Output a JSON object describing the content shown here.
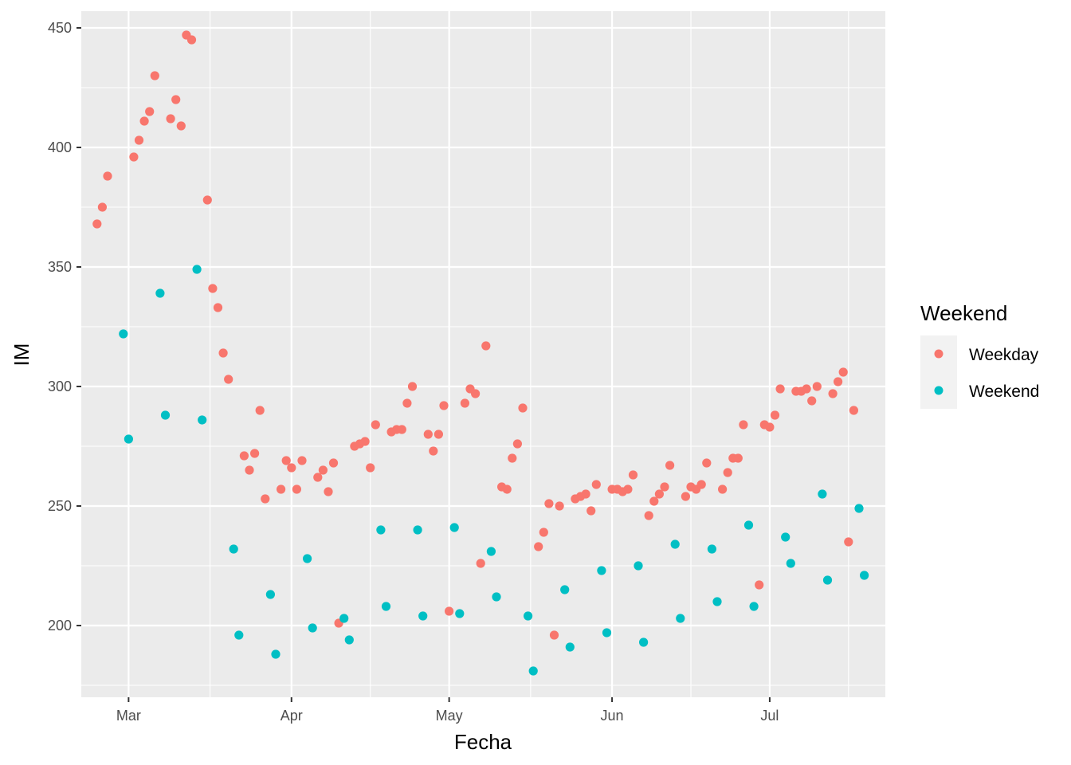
{
  "chart_data": {
    "type": "scatter",
    "xlabel": "Fecha",
    "ylabel": "IM",
    "x_axis": "date",
    "xlim": [
      "2020-02-21",
      "2020-07-23"
    ],
    "ylim": [
      170,
      457
    ],
    "x_ticks": [
      {
        "date": "2020-03-01",
        "label": "Mar"
      },
      {
        "date": "2020-04-01",
        "label": "Apr"
      },
      {
        "date": "2020-05-01",
        "label": "May"
      },
      {
        "date": "2020-06-01",
        "label": "Jun"
      },
      {
        "date": "2020-07-01",
        "label": "Jul"
      }
    ],
    "y_ticks": [
      200,
      250,
      300,
      350,
      400,
      450
    ],
    "grid": true,
    "legend": {
      "title": "Weekend",
      "position": "right"
    },
    "series": [
      {
        "name": "Weekday",
        "color": "#F8766D",
        "points": [
          [
            "2020-02-24",
            368
          ],
          [
            "2020-02-25",
            375
          ],
          [
            "2020-02-26",
            388
          ],
          [
            "2020-03-02",
            396
          ],
          [
            "2020-03-03",
            403
          ],
          [
            "2020-03-04",
            411
          ],
          [
            "2020-03-05",
            415
          ],
          [
            "2020-03-06",
            430
          ],
          [
            "2020-03-09",
            412
          ],
          [
            "2020-03-10",
            420
          ],
          [
            "2020-03-11",
            409
          ],
          [
            "2020-03-12",
            447
          ],
          [
            "2020-03-13",
            445
          ],
          [
            "2020-03-16",
            378
          ],
          [
            "2020-03-17",
            341
          ],
          [
            "2020-03-18",
            333
          ],
          [
            "2020-03-19",
            314
          ],
          [
            "2020-03-20",
            303
          ],
          [
            "2020-03-23",
            271
          ],
          [
            "2020-03-24",
            265
          ],
          [
            "2020-03-25",
            272
          ],
          [
            "2020-03-26",
            290
          ],
          [
            "2020-03-27",
            253
          ],
          [
            "2020-03-30",
            257
          ],
          [
            "2020-03-31",
            269
          ],
          [
            "2020-04-01",
            266
          ],
          [
            "2020-04-02",
            257
          ],
          [
            "2020-04-03",
            269
          ],
          [
            "2020-04-06",
            262
          ],
          [
            "2020-04-07",
            265
          ],
          [
            "2020-04-08",
            256
          ],
          [
            "2020-04-09",
            268
          ],
          [
            "2020-04-10",
            201
          ],
          [
            "2020-04-13",
            275
          ],
          [
            "2020-04-14",
            276
          ],
          [
            "2020-04-15",
            277
          ],
          [
            "2020-04-16",
            266
          ],
          [
            "2020-04-17",
            284
          ],
          [
            "2020-04-20",
            281
          ],
          [
            "2020-04-21",
            282
          ],
          [
            "2020-04-22",
            282
          ],
          [
            "2020-04-23",
            293
          ],
          [
            "2020-04-24",
            300
          ],
          [
            "2020-04-27",
            280
          ],
          [
            "2020-04-28",
            273
          ],
          [
            "2020-04-29",
            280
          ],
          [
            "2020-04-30",
            292
          ],
          [
            "2020-05-01",
            206
          ],
          [
            "2020-05-04",
            293
          ],
          [
            "2020-05-05",
            299
          ],
          [
            "2020-05-06",
            297
          ],
          [
            "2020-05-07",
            226
          ],
          [
            "2020-05-08",
            317
          ],
          [
            "2020-05-11",
            258
          ],
          [
            "2020-05-12",
            257
          ],
          [
            "2020-05-13",
            270
          ],
          [
            "2020-05-14",
            276
          ],
          [
            "2020-05-15",
            291
          ],
          [
            "2020-05-18",
            233
          ],
          [
            "2020-05-19",
            239
          ],
          [
            "2020-05-20",
            251
          ],
          [
            "2020-05-21",
            196
          ],
          [
            "2020-05-22",
            250
          ],
          [
            "2020-05-25",
            253
          ],
          [
            "2020-05-26",
            254
          ],
          [
            "2020-05-27",
            255
          ],
          [
            "2020-05-28",
            248
          ],
          [
            "2020-05-29",
            259
          ],
          [
            "2020-06-01",
            257
          ],
          [
            "2020-06-02",
            257
          ],
          [
            "2020-06-03",
            256
          ],
          [
            "2020-06-04",
            257
          ],
          [
            "2020-06-05",
            263
          ],
          [
            "2020-06-08",
            246
          ],
          [
            "2020-06-09",
            252
          ],
          [
            "2020-06-10",
            255
          ],
          [
            "2020-06-11",
            258
          ],
          [
            "2020-06-12",
            267
          ],
          [
            "2020-06-15",
            254
          ],
          [
            "2020-06-16",
            258
          ],
          [
            "2020-06-17",
            257
          ],
          [
            "2020-06-18",
            259
          ],
          [
            "2020-06-19",
            268
          ],
          [
            "2020-06-22",
            257
          ],
          [
            "2020-06-23",
            264
          ],
          [
            "2020-06-24",
            270
          ],
          [
            "2020-06-25",
            270
          ],
          [
            "2020-06-26",
            284
          ],
          [
            "2020-06-29",
            217
          ],
          [
            "2020-06-30",
            284
          ],
          [
            "2020-07-01",
            283
          ],
          [
            "2020-07-02",
            288
          ],
          [
            "2020-07-03",
            299
          ],
          [
            "2020-07-06",
            298
          ],
          [
            "2020-07-07",
            298
          ],
          [
            "2020-07-08",
            299
          ],
          [
            "2020-07-09",
            294
          ],
          [
            "2020-07-10",
            300
          ],
          [
            "2020-07-13",
            297
          ],
          [
            "2020-07-14",
            302
          ],
          [
            "2020-07-15",
            306
          ],
          [
            "2020-07-16",
            235
          ],
          [
            "2020-07-17",
            290
          ]
        ]
      },
      {
        "name": "Weekend",
        "color": "#00BFC4",
        "points": [
          [
            "2020-02-29",
            322
          ],
          [
            "2020-03-01",
            278
          ],
          [
            "2020-03-07",
            339
          ],
          [
            "2020-03-08",
            288
          ],
          [
            "2020-03-14",
            349
          ],
          [
            "2020-03-15",
            286
          ],
          [
            "2020-03-21",
            232
          ],
          [
            "2020-03-22",
            196
          ],
          [
            "2020-03-28",
            213
          ],
          [
            "2020-03-29",
            188
          ],
          [
            "2020-04-04",
            228
          ],
          [
            "2020-04-05",
            199
          ],
          [
            "2020-04-11",
            203
          ],
          [
            "2020-04-12",
            194
          ],
          [
            "2020-04-18",
            240
          ],
          [
            "2020-04-19",
            208
          ],
          [
            "2020-04-25",
            240
          ],
          [
            "2020-04-26",
            204
          ],
          [
            "2020-05-02",
            241
          ],
          [
            "2020-05-03",
            205
          ],
          [
            "2020-05-09",
            231
          ],
          [
            "2020-05-10",
            212
          ],
          [
            "2020-05-16",
            204
          ],
          [
            "2020-05-17",
            181
          ],
          [
            "2020-05-23",
            215
          ],
          [
            "2020-05-24",
            191
          ],
          [
            "2020-05-30",
            223
          ],
          [
            "2020-05-31",
            197
          ],
          [
            "2020-06-06",
            225
          ],
          [
            "2020-06-07",
            193
          ],
          [
            "2020-06-13",
            234
          ],
          [
            "2020-06-14",
            203
          ],
          [
            "2020-06-20",
            232
          ],
          [
            "2020-06-21",
            210
          ],
          [
            "2020-06-27",
            242
          ],
          [
            "2020-06-28",
            208
          ],
          [
            "2020-07-04",
            237
          ],
          [
            "2020-07-05",
            226
          ],
          [
            "2020-07-11",
            255
          ],
          [
            "2020-07-12",
            219
          ],
          [
            "2020-07-18",
            249
          ],
          [
            "2020-07-19",
            221
          ]
        ]
      }
    ]
  }
}
